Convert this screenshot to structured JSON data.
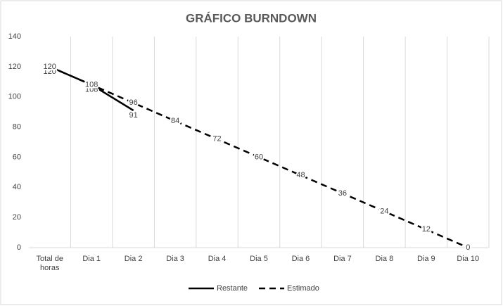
{
  "chart_data": {
    "type": "line",
    "title": "GRÁFICO BURNDOWN",
    "categories": [
      "Total de horas",
      "Dia 1",
      "Dia 2",
      "Dia 3",
      "Dia 4",
      "Dia 5",
      "Dia 6",
      "Dia 7",
      "Dia 8",
      "Dia 9",
      "Dia 10"
    ],
    "series": [
      {
        "name": "Restante",
        "color": "#000000",
        "dash": "solid",
        "values": [
          120,
          108,
          91,
          null,
          null,
          null,
          null,
          null,
          null,
          null,
          null
        ]
      },
      {
        "name": "Estimado",
        "color": "#000000",
        "dash": "dashed",
        "values": [
          120,
          108,
          96,
          84,
          72,
          60,
          48,
          36,
          24,
          12,
          0
        ]
      }
    ],
    "ylim": [
      0,
      140
    ],
    "yticks": [
      0,
      20,
      40,
      60,
      80,
      100,
      120,
      140
    ],
    "grid": "vertical",
    "legend": "bottom"
  }
}
